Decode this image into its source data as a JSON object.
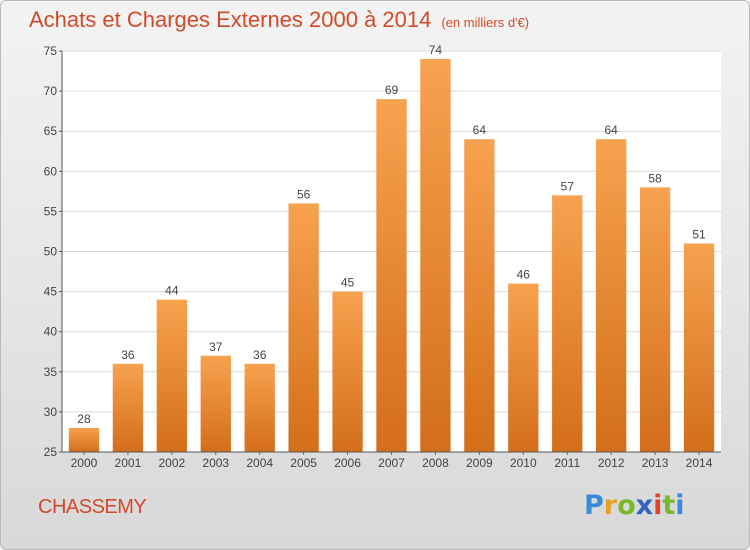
{
  "header": {
    "title": "Achats et Charges Externes 2000 à 2014",
    "unit": "(en milliers d'€)"
  },
  "footer": {
    "commune": "CHASSEMY",
    "logo_text": "Proxiti"
  },
  "colors": {
    "bar_light": "#f7a24f",
    "bar_dark": "#d36e1a",
    "title": "#d24a28"
  },
  "chart_data": {
    "type": "bar",
    "categories": [
      "2000",
      "2001",
      "2002",
      "2003",
      "2004",
      "2005",
      "2006",
      "2007",
      "2008",
      "2009",
      "2010",
      "2011",
      "2012",
      "2013",
      "2014"
    ],
    "values": [
      28,
      36,
      44,
      37,
      36,
      56,
      45,
      69,
      74,
      64,
      46,
      57,
      64,
      58,
      51
    ],
    "ylim": [
      25,
      75
    ],
    "yticks": [
      25,
      30,
      35,
      40,
      45,
      50,
      55,
      60,
      65,
      70,
      75
    ],
    "grid": true,
    "title": "Achats et Charges Externes 2000 à 2014",
    "xlabel": "",
    "ylabel": ""
  }
}
